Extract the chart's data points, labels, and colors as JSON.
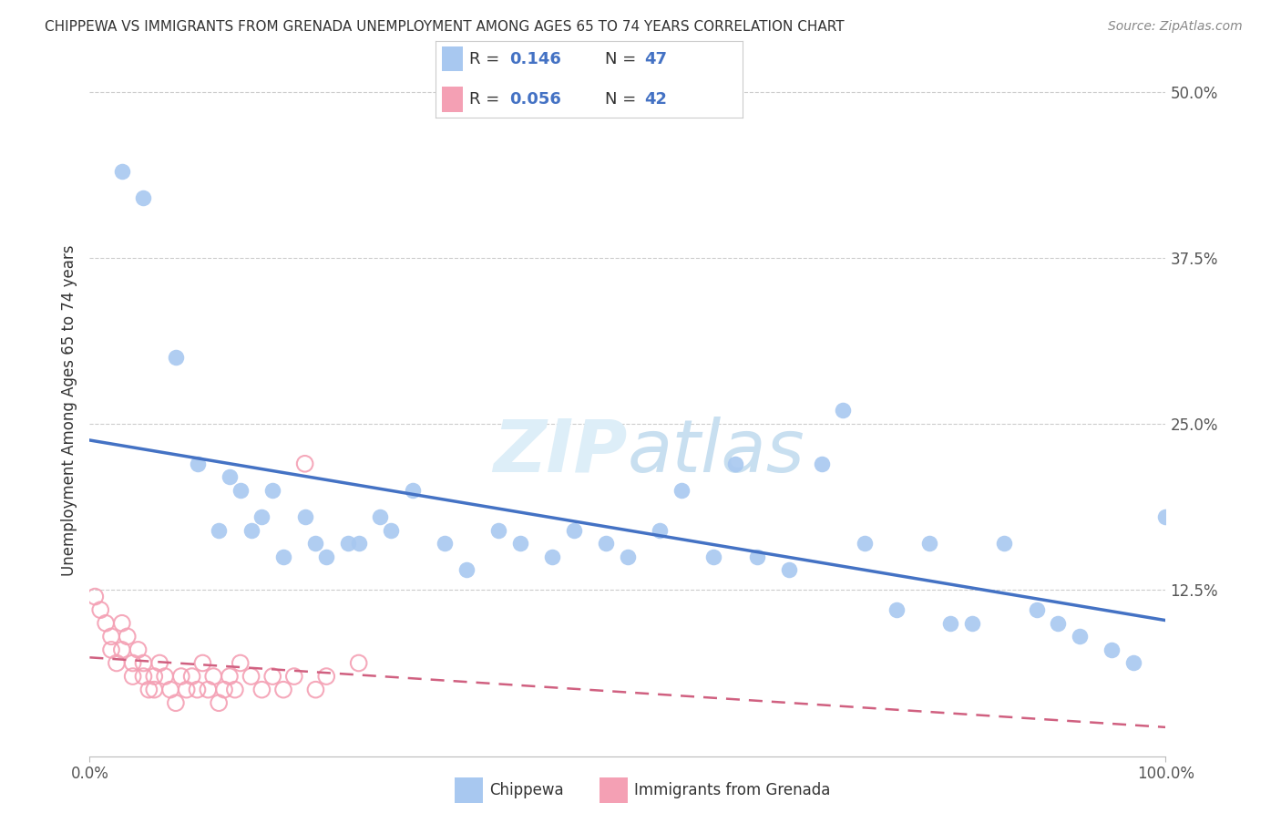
{
  "title": "CHIPPEWA VS IMMIGRANTS FROM GRENADA UNEMPLOYMENT AMONG AGES 65 TO 74 YEARS CORRELATION CHART",
  "source": "Source: ZipAtlas.com",
  "ylabel": "Unemployment Among Ages 65 to 74 years",
  "xlim": [
    0,
    100
  ],
  "ylim": [
    0,
    52
  ],
  "yticks": [
    0,
    12.5,
    25.0,
    37.5,
    50.0
  ],
  "chippewa_color": "#a8c8f0",
  "chippewa_edge": "#7aadd8",
  "grenada_color": "#f4a0b4",
  "grenada_edge": "#e07090",
  "chippewa_line_color": "#4472c4",
  "grenada_line_color": "#d06080",
  "watermark_color": "#ddeeff",
  "grid_color": "#cccccc",
  "chippewa_x": [
    3,
    5,
    8,
    10,
    12,
    13,
    14,
    15,
    16,
    17,
    18,
    20,
    21,
    22,
    24,
    25,
    27,
    28,
    30,
    33,
    35,
    38,
    40,
    43,
    45,
    48,
    50,
    53,
    55,
    58,
    60,
    62,
    65,
    68,
    70,
    72,
    75,
    78,
    80,
    82,
    85,
    88,
    90,
    92,
    95,
    97,
    100
  ],
  "chippewa_y": [
    44,
    42,
    30,
    22,
    17,
    21,
    20,
    17,
    18,
    20,
    15,
    18,
    16,
    15,
    16,
    16,
    18,
    17,
    20,
    16,
    14,
    17,
    16,
    15,
    17,
    16,
    15,
    17,
    20,
    15,
    22,
    15,
    14,
    22,
    26,
    16,
    11,
    16,
    10,
    10,
    16,
    11,
    10,
    9,
    8,
    7,
    18
  ],
  "grenada_x": [
    0.5,
    1,
    1.5,
    2,
    2,
    2.5,
    3,
    3,
    3.5,
    4,
    4,
    4.5,
    5,
    5,
    5.5,
    6,
    6,
    6.5,
    7,
    7.5,
    8,
    8.5,
    9,
    9.5,
    10,
    10.5,
    11,
    11.5,
    12,
    12.5,
    13,
    13.5,
    14,
    15,
    16,
    17,
    18,
    19,
    20,
    21,
    22,
    25
  ],
  "grenada_y": [
    12,
    11,
    10,
    9,
    8,
    7,
    10,
    8,
    9,
    7,
    6,
    8,
    7,
    6,
    5,
    6,
    5,
    7,
    6,
    5,
    4,
    6,
    5,
    6,
    5,
    7,
    5,
    6,
    4,
    5,
    6,
    5,
    7,
    6,
    5,
    6,
    5,
    6,
    22,
    5,
    6,
    7
  ]
}
